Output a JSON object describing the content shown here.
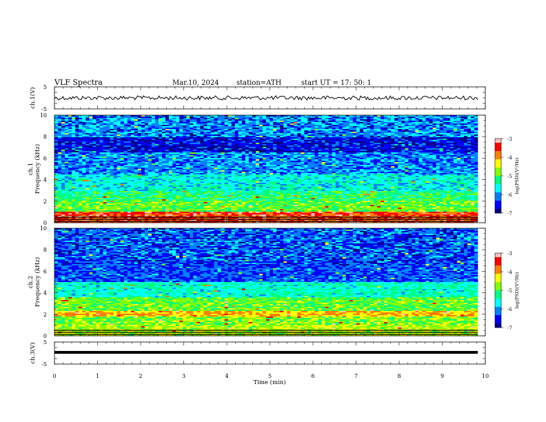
{
  "header": {
    "title": "VLF  Spectra",
    "date": "Mar.10, 2024",
    "station": "station=ATH",
    "start": "start  UT  =    17: 50: 1"
  },
  "colors": {
    "palette": [
      "#000000",
      "#00008b",
      "#0000ff",
      "#0080ff",
      "#00ffff",
      "#00ff80",
      "#80ff00",
      "#ffff00",
      "#ff8000",
      "#ff0000",
      "#ffc0c0",
      "#ffffff"
    ]
  },
  "chart_data": [
    {
      "type": "line",
      "ylabel": "ch.1(V)",
      "ylim": [
        -5,
        5
      ],
      "yticks": [
        "5",
        "-5"
      ],
      "series": [
        {
          "values_note": "",
          "baseline": 0,
          "noise_amplitude": 0.6
        }
      ]
    },
    {
      "type": "heatmap",
      "ylabel_top": "ch.1",
      "ylabel": "Frequency (kHz)",
      "ylim": [
        0,
        10
      ],
      "yticks": [
        "0",
        "2",
        "4",
        "6",
        "8",
        "10"
      ],
      "xlim": [
        0,
        10
      ],
      "colorbar": {
        "label": "log(PSD)(V²/Hz)",
        "range": [
          -7,
          -3
        ],
        "ticks": [
          "-3",
          "-4",
          "-5",
          "-6",
          "-7"
        ]
      },
      "bands": [
        {
          "from": 0.0,
          "to": 1.0,
          "level": -3.6
        },
        {
          "from": 1.0,
          "to": 2.0,
          "level": -4.9
        },
        {
          "from": 2.0,
          "to": 3.0,
          "level": -5.2
        },
        {
          "from": 3.0,
          "to": 4.5,
          "level": -5.6
        },
        {
          "from": 4.5,
          "to": 6.5,
          "level": -6.1
        },
        {
          "from": 6.5,
          "to": 8.0,
          "level": -6.6
        },
        {
          "from": 8.0,
          "to": 10.0,
          "level": -6.0
        }
      ]
    },
    {
      "type": "heatmap",
      "ylabel_top": "ch.2",
      "ylabel": "Frequency (kHz)",
      "ylim": [
        0,
        10
      ],
      "yticks": [
        "0",
        "2",
        "4",
        "6",
        "8",
        "10"
      ],
      "xlim": [
        0,
        10
      ],
      "colorbar": {
        "label": "log(PSD)(V²/Hz)",
        "range": [
          -7,
          -3
        ],
        "ticks": [
          "-3",
          "-4",
          "-5",
          "-6",
          "-7"
        ]
      },
      "bands": [
        {
          "from": 0.0,
          "to": 1.0,
          "level": -4.6
        },
        {
          "from": 1.0,
          "to": 1.8,
          "level": -4.8
        },
        {
          "from": 1.8,
          "to": 2.3,
          "level": -4.1
        },
        {
          "from": 2.3,
          "to": 3.6,
          "level": -4.9
        },
        {
          "from": 3.6,
          "to": 5.0,
          "level": -5.5
        },
        {
          "from": 5.0,
          "to": 7.0,
          "level": -6.3
        },
        {
          "from": 7.0,
          "to": 10.0,
          "level": -6.2
        }
      ]
    },
    {
      "type": "line",
      "ylabel": "ch.3(V)",
      "ylim": [
        -5,
        5
      ],
      "yticks": [
        "5",
        "-5"
      ],
      "series": [
        {
          "baseline": 0,
          "noise_amplitude": 0.0
        }
      ]
    }
  ],
  "xaxis": {
    "label": "Time  (min)",
    "ticks": [
      "0",
      "1",
      "2",
      "3",
      "4",
      "5",
      "6",
      "7",
      "8",
      "9",
      "10"
    ],
    "xlim": [
      0,
      10
    ]
  }
}
